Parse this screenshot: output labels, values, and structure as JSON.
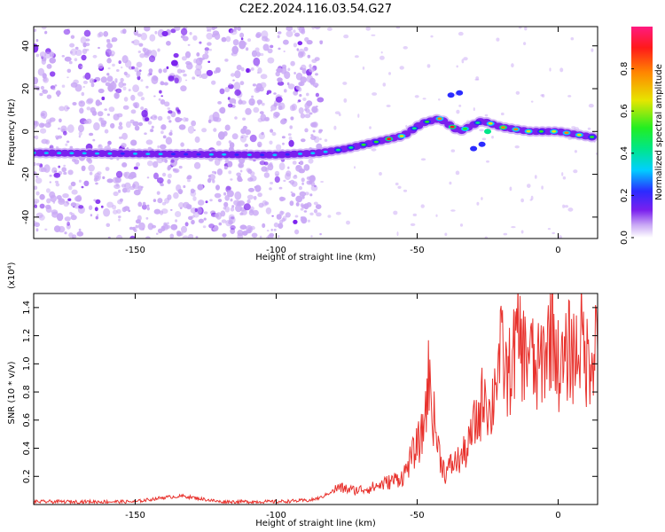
{
  "title": "C2E2.2024.116.03.54.G27",
  "chart_data": [
    {
      "type": "heatmap",
      "xlabel": "Height of straight line (km)",
      "ylabel": "Frequency (Hz)",
      "xlim": [
        -186,
        14
      ],
      "ylim": [
        -50,
        49
      ],
      "xticks": [
        -150,
        -100,
        -50,
        0
      ],
      "yticks": [
        -40,
        -20,
        0,
        20,
        40
      ],
      "colorbar": {
        "label": "Normalized spectral amplitude",
        "range": [
          0,
          1
        ],
        "ticks": [
          0.0,
          0.2,
          0.4,
          0.6,
          0.8
        ],
        "colormap": [
          "#ffffff",
          "#c9a8f5",
          "#7a20ee",
          "#2b2bff",
          "#00cfff",
          "#00e68a",
          "#22ee22",
          "#e6e600",
          "#ff8800",
          "#ff1a1a",
          "#ff1a80"
        ]
      },
      "ridge": [
        {
          "x": -186,
          "y": -10
        },
        {
          "x": -100,
          "y": -11
        },
        {
          "x": -85,
          "y": -10
        },
        {
          "x": -75,
          "y": -8
        },
        {
          "x": -65,
          "y": -5
        },
        {
          "x": -55,
          "y": -2
        },
        {
          "x": -48,
          "y": 4
        },
        {
          "x": -42,
          "y": 6
        },
        {
          "x": -35,
          "y": 0
        },
        {
          "x": -27,
          "y": 5
        },
        {
          "x": -20,
          "y": 2
        },
        {
          "x": -10,
          "y": 0
        },
        {
          "x": 0,
          "y": 0
        },
        {
          "x": 14,
          "y": -3
        }
      ],
      "noise_region_x": [
        -186,
        -84
      ]
    },
    {
      "type": "line",
      "xlabel": "Height of straight line (km)",
      "ylabel": "SNR (10 * v/v)",
      "y_multiplier": "(x10⁴)",
      "xlim": [
        -186,
        14
      ],
      "ylim": [
        0,
        1.5
      ],
      "xticks": [
        -150,
        -100,
        -50,
        0
      ],
      "yticks": [
        0.2,
        0.4,
        0.6,
        0.8,
        1.0,
        1.2,
        1.4
      ],
      "color": "#e8322d",
      "series": [
        {
          "x": [
            -186,
            -170,
            -150,
            -140,
            -133,
            -120,
            -100,
            -88,
            -84,
            -78,
            -72,
            -66,
            -60,
            -55,
            -50,
            -48,
            -46,
            -44,
            -42,
            -40,
            -38,
            -35,
            -32,
            -30,
            -28,
            -26,
            -24,
            -22,
            -20,
            -18,
            -16,
            -14,
            -12,
            -10,
            -8,
            -6,
            -4,
            -2,
            0,
            2,
            4,
            6,
            8,
            10,
            12,
            14
          ],
          "y": [
            0.02,
            0.02,
            0.02,
            0.05,
            0.06,
            0.02,
            0.02,
            0.03,
            0.05,
            0.12,
            0.1,
            0.12,
            0.16,
            0.2,
            0.42,
            0.5,
            0.9,
            0.6,
            0.35,
            0.22,
            0.28,
            0.32,
            0.4,
            0.55,
            0.62,
            0.85,
            0.6,
            0.95,
            1.08,
            0.88,
            1.05,
            1.2,
            1.05,
            1.12,
            0.9,
            1.02,
            1.12,
            1.3,
            1.0,
            0.95,
            1.12,
            1.05,
            1.2,
            1.02,
            1.1,
            1.22
          ]
        }
      ]
    }
  ]
}
